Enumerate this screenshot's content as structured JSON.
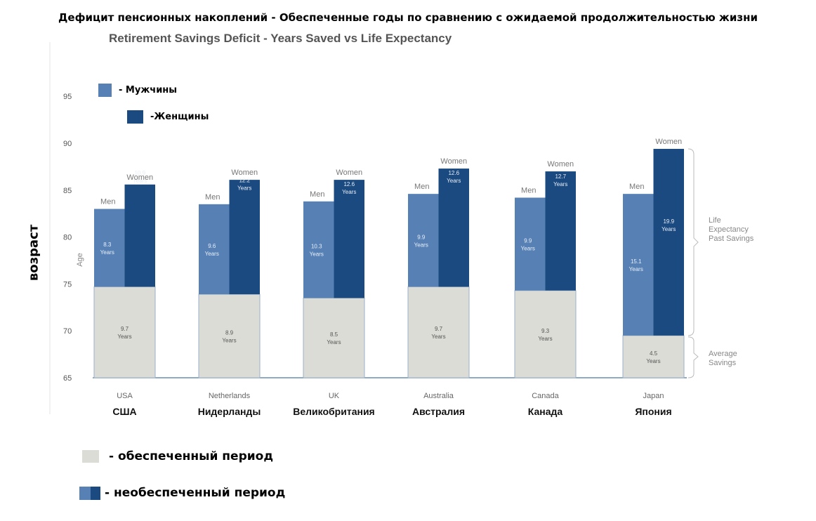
{
  "title_ru": "Дефицит пенсионных накоплений -  Обеспеченные годы по сравнению с ожидаемой продолжительностью жизни",
  "chart_data": {
    "type": "bar",
    "title": "Retirement Savings Deficit - Years Saved vs Life Expectancy",
    "ylabel": "Age",
    "ylabel_ru": "возраст",
    "ylim": [
      65,
      95
    ],
    "yticks": [
      65,
      70,
      75,
      80,
      85,
      90,
      95
    ],
    "categories": [
      "USA",
      "Netherlands",
      "UK",
      "Australia",
      "Canada",
      "Japan"
    ],
    "categories_ru": [
      "США",
      "Нидерланды",
      "Великобритания",
      "Австралия",
      "Канада",
      "Япония"
    ],
    "series_labels": {
      "men": "Men",
      "women": "Women"
    },
    "years_unit": "Years",
    "base_age": 65,
    "savings_years": [
      9.7,
      8.9,
      8.5,
      9.7,
      9.3,
      4.5
    ],
    "men_unfunded_years": [
      8.3,
      9.6,
      10.3,
      9.9,
      9.9,
      15.1
    ],
    "women_unfunded_years": [
      10.9,
      12.2,
      12.6,
      12.6,
      12.7,
      19.9
    ],
    "annotations": [
      {
        "text": [
          "Life",
          "Expectancy",
          "Past Savings"
        ],
        "target": "unfunded"
      },
      {
        "text": [
          "Average",
          "Savings"
        ],
        "target": "savings"
      }
    ],
    "colors": {
      "men": "#5781b5",
      "women": "#1b4a80",
      "savings": "#dcdcd7"
    }
  },
  "legend_top": [
    {
      "label": "- Мужчины",
      "color": "#5781b5"
    },
    {
      "label": "-Женщины",
      "color": "#1b4a80"
    }
  ],
  "legend_bottom": [
    {
      "label": "- обеспеченный период"
    },
    {
      "label": "- необеспеченный период"
    }
  ]
}
